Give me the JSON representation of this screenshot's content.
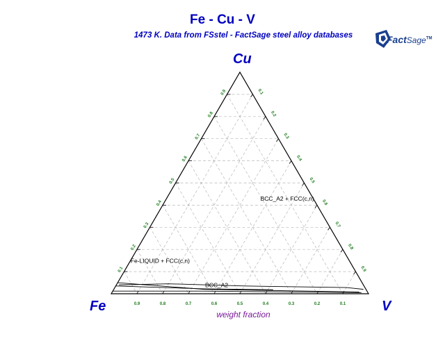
{
  "header": {
    "title": "Fe - Cu - V",
    "subtitle": "1473 K.  Data from FSstel - FactSage steel alloy databases"
  },
  "logo": {
    "word_bold": "Fact",
    "word_light": "Sage",
    "mark": "TM"
  },
  "corners": {
    "top": "Cu",
    "left": "Fe",
    "right": "V"
  },
  "axis": {
    "label": "weight fraction",
    "ticks": [
      "0.1",
      "0.2",
      "0.3",
      "0.4",
      "0.5",
      "0.6",
      "0.7",
      "0.8",
      "0.9"
    ],
    "bottom_ticks": [
      "0.9",
      "0.8",
      "0.7",
      "0.6",
      "0.5",
      "0.4",
      "0.3",
      "0.2",
      "0.1"
    ]
  },
  "regions": [
    {
      "label": "BCC_A2 + FCC(c,n)",
      "cu": 0.42,
      "v": 0.37
    },
    {
      "label": "Fe-LIQUID + FCC(c,n)",
      "cu": 0.14,
      "v": 0.005
    },
    {
      "label": "BCC_A2",
      "cu": 0.03,
      "v": 0.35
    }
  ],
  "colors": {
    "title": "#0000c0",
    "tick_labels": "#1a7a1a",
    "axis_label": "#7a1a9a"
  },
  "chart_data": {
    "type": "ternary",
    "components": [
      "Fe",
      "Cu",
      "V"
    ],
    "composition_unit": "weight fraction",
    "temperature": "1473 K",
    "grid_step": 0.1,
    "boundaries": [
      {
        "points": [
          [
            0.05,
            0.0
          ],
          [
            0.02,
            0.35
          ],
          [
            0.008,
            0.96
          ]
        ]
      },
      {
        "points": [
          [
            0.012,
            0.0
          ],
          [
            0.012,
            0.35
          ],
          [
            0.005,
            0.97
          ]
        ]
      },
      {
        "points": [
          [
            0.035,
            0.0
          ],
          [
            0.022,
            0.35
          ],
          [
            0.018,
            0.62
          ]
        ]
      },
      {
        "points": [
          [
            0.04,
            0.01
          ],
          [
            0.045,
            0.2
          ],
          [
            0.035,
            0.5
          ],
          [
            0.028,
            0.9
          ],
          [
            0.02,
            0.97
          ]
        ]
      }
    ]
  }
}
